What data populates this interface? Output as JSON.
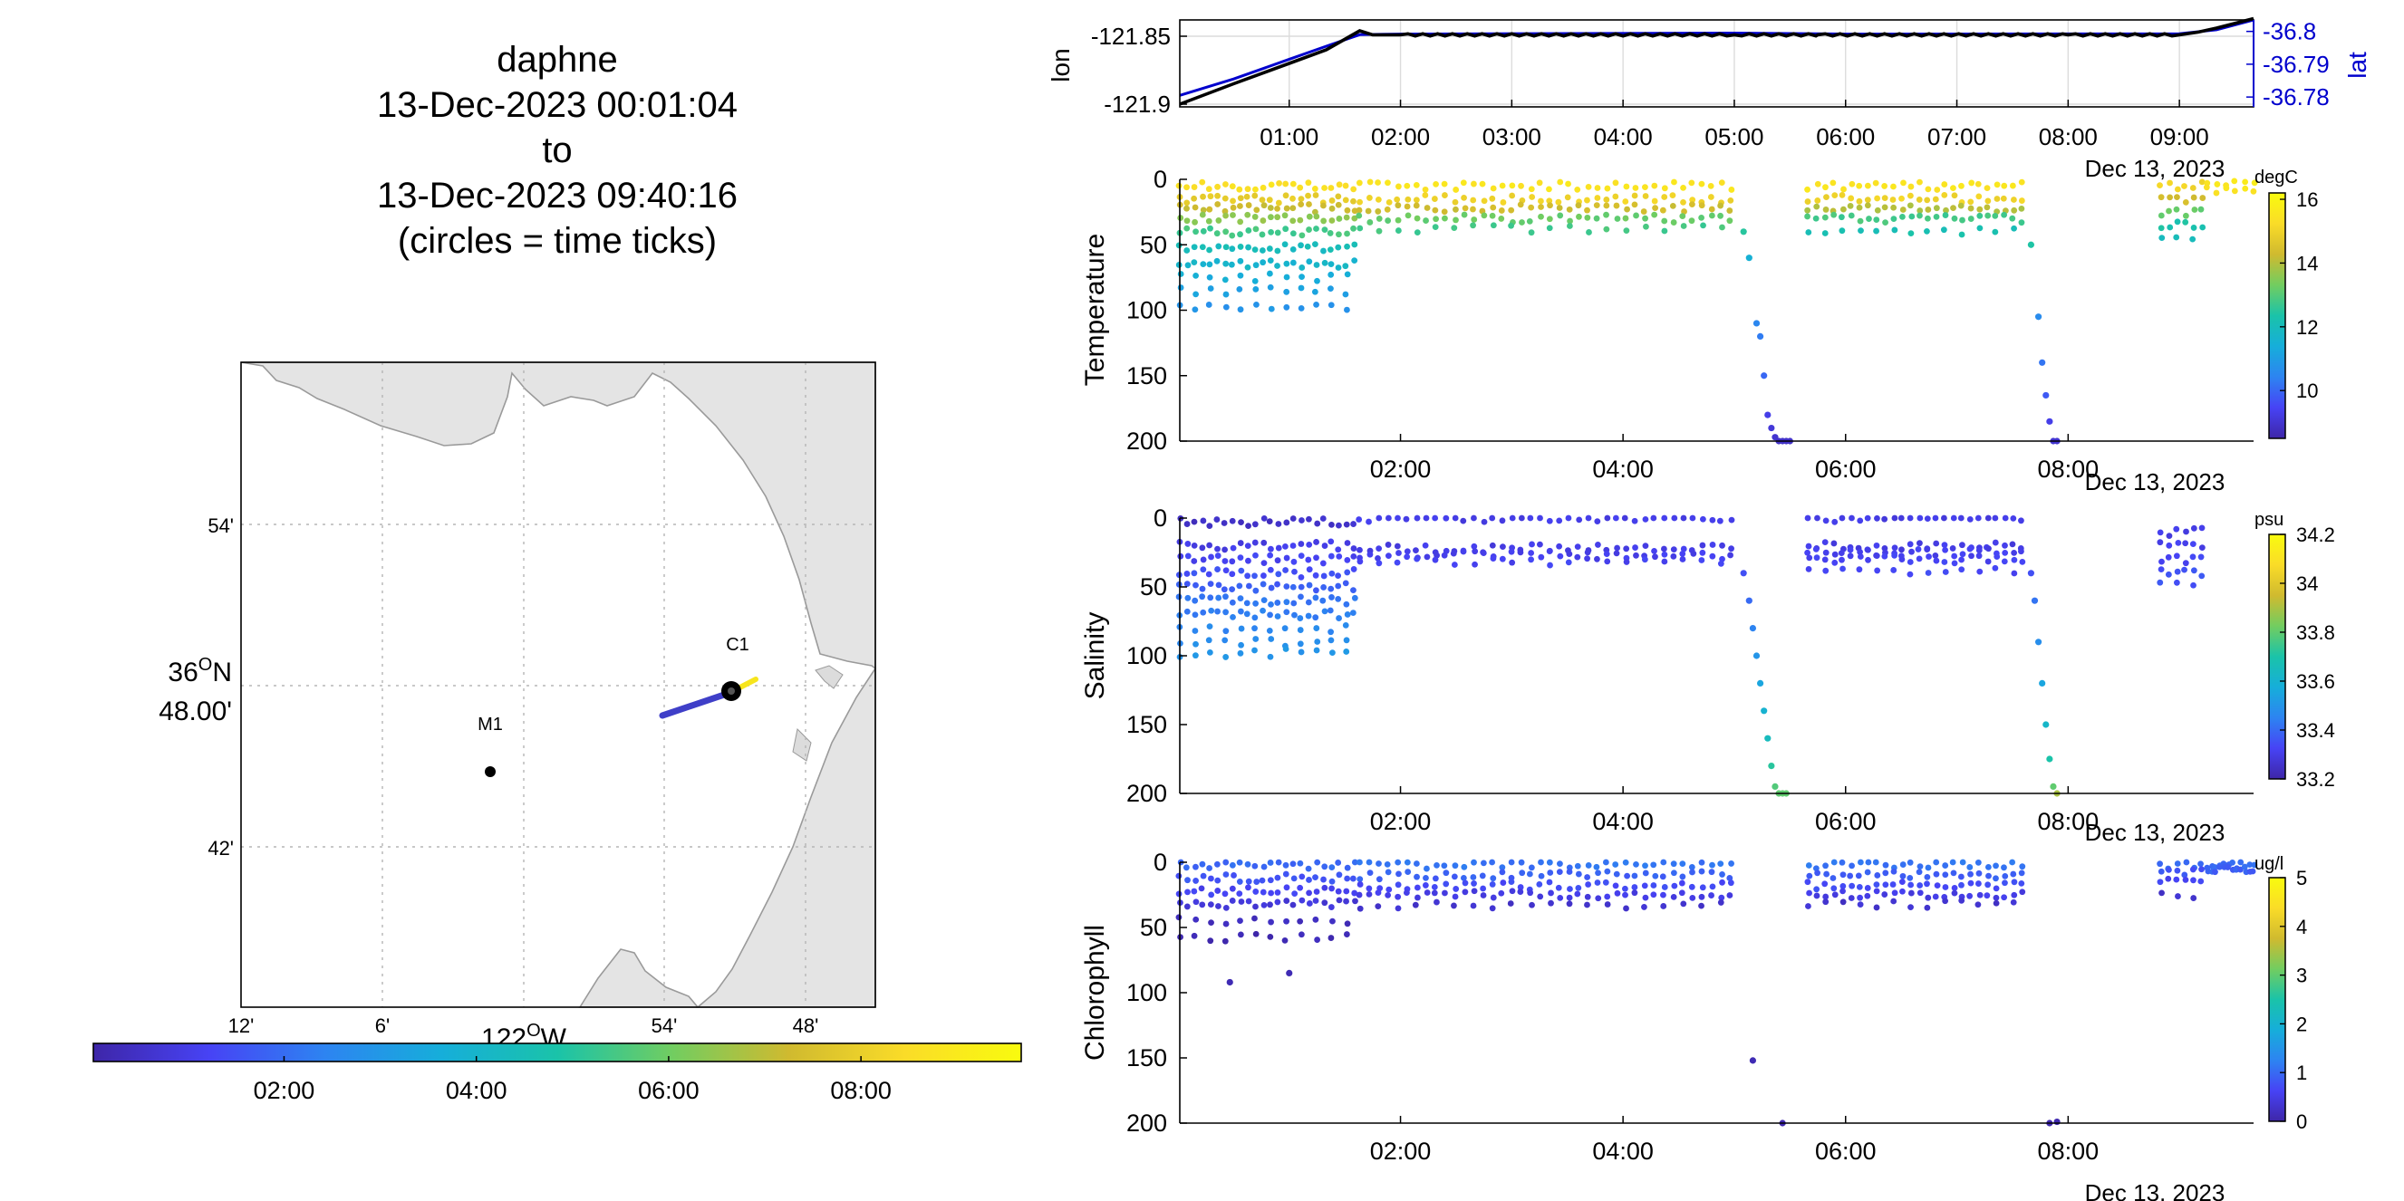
{
  "title": {
    "vehicle": "daphne",
    "start": "13-Dec-2023 00:01:04",
    "to": "to",
    "end": "13-Dec-2023 09:40:16",
    "note": "(circles = time ticks)"
  },
  "map": {
    "lat_ticks": [
      "54'",
      "42'"
    ],
    "lat_center_deg": "36",
    "lat_center_hem": "N",
    "lat_center_min": "48.00'",
    "lon_ticks": [
      "12'",
      "6'",
      "54'",
      "48'"
    ],
    "lon_center_deg": "122",
    "lon_center_hem": "W",
    "stations": [
      {
        "name": "M1",
        "lon": -122.03,
        "lat": 36.75
      },
      {
        "name": "C1",
        "lon": -121.865,
        "lat": 36.8
      }
    ],
    "track": {
      "start_lon": -121.9,
      "start_lat": 36.78,
      "end_lon": -121.85,
      "end_lat": 36.805
    },
    "time_colorbar_ticks": [
      "02:00",
      "04:00",
      "06:00",
      "08:00"
    ],
    "colors": {
      "land": "#e4e4e4",
      "coast": "#9a9a9a",
      "track": "#3f3fc8",
      "track_end": "#f7e51c"
    }
  },
  "colormap": [
    "#3e26a8",
    "#4743f5",
    "#2d84f1",
    "#16aeda",
    "#1ac3a9",
    "#72cd60",
    "#d0ba2f",
    "#fadc28",
    "#f9fb0e"
  ],
  "chart_data": [
    {
      "type": "line",
      "title": "",
      "xlabel": "",
      "ylabel": "lon",
      "ylabel_right": "lat",
      "x_tick_labels": [
        "01:00",
        "02:00",
        "03:00",
        "04:00",
        "05:00",
        "06:00",
        "07:00",
        "08:00",
        "09:00"
      ],
      "date_label": "Dec 13, 2023",
      "y_tick_labels": [
        "-121.85",
        "-121.9"
      ],
      "y_right_tick_labels": [
        "36.8",
        "36.79",
        "36.78"
      ],
      "series": [
        {
          "name": "lon",
          "color": "#000000",
          "x": [
            "00:01",
            "00:30",
            "01:00",
            "01:20",
            "01:38",
            "01:45",
            "02:00",
            "05:00",
            "05:45",
            "08:00",
            "09:00",
            "09:10",
            "09:20",
            "09:40"
          ],
          "y": [
            -121.9,
            -121.885,
            -121.87,
            -121.86,
            -121.846,
            -121.849,
            -121.849,
            -121.849,
            -121.849,
            -121.849,
            -121.849,
            -121.847,
            -121.844,
            -121.837
          ]
        },
        {
          "name": "lat",
          "color": "#0000cd",
          "x": [
            "00:01",
            "00:30",
            "01:00",
            "01:20",
            "01:38",
            "02:00",
            "05:00",
            "06:00",
            "09:00",
            "09:20",
            "09:40"
          ],
          "y": [
            36.7805,
            36.7855,
            36.7915,
            36.7955,
            36.799,
            36.7992,
            36.7995,
            36.7992,
            36.7993,
            36.8005,
            36.8035
          ]
        }
      ]
    },
    {
      "type": "scatter",
      "title": "",
      "xlabel": "",
      "ylabel": "Temperature",
      "colorbar_label": "degC",
      "colorbar_ticks": [
        "16",
        "14",
        "12",
        "10"
      ],
      "clim": [
        8.5,
        16.2
      ],
      "ylim": [
        0,
        200
      ],
      "y_tick_labels": [
        "0",
        "50",
        "100",
        "150",
        "200"
      ],
      "x_tick_labels": [
        "02:00",
        "04:00",
        "06:00",
        "08:00"
      ],
      "date_label": "Dec 13, 2023",
      "x_range": [
        "00:01",
        "09:40"
      ],
      "profiles": [
        {
          "t_start": "00:01",
          "t_end": "01:35",
          "depths": [
            5,
            15,
            22,
            30,
            40,
            52,
            65,
            75,
            85,
            98
          ],
          "values": [
            15.4,
            14.8,
            14.2,
            13.6,
            12.8,
            12.0,
            11.7,
            11.4,
            11.1,
            10.8
          ],
          "n": 24
        },
        {
          "t_start": "01:38",
          "t_end": "04:58",
          "depths": [
            5,
            15,
            22,
            30,
            38
          ],
          "values": [
            15.5,
            15.0,
            14.3,
            13.2,
            12.8
          ],
          "n": 40
        },
        {
          "t_start": "05:40",
          "t_end": "07:35",
          "depths": [
            5,
            15,
            22,
            30,
            40
          ],
          "values": [
            15.5,
            15.0,
            14.0,
            12.8,
            12.2
          ],
          "n": 26
        },
        {
          "t_start": "08:50",
          "t_end": "09:12",
          "depths": [
            5,
            15,
            25,
            35,
            45
          ],
          "values": [
            15.0,
            14.4,
            13.2,
            12.3,
            11.9
          ],
          "n": 6
        },
        {
          "t_start": "09:15",
          "t_end": "09:40",
          "depths": [
            2,
            8
          ],
          "values": [
            15.6,
            15.5
          ],
          "n": 6
        }
      ],
      "dives": [
        {
          "x": [
            "05:05",
            "05:08",
            "05:12",
            "05:14",
            "05:16",
            "05:18",
            "05:20",
            "05:22",
            "05:24",
            "05:26",
            "05:28",
            "05:30"
          ],
          "y": [
            40,
            60,
            110,
            120,
            150,
            180,
            190,
            197,
            200,
            200,
            200,
            200
          ],
          "v": [
            12.5,
            11.5,
            10.5,
            10.3,
            10.0,
            9.3,
            9.1,
            9.0,
            8.9,
            8.9,
            8.9,
            8.9
          ]
        },
        {
          "x": [
            "07:40",
            "07:44",
            "07:46",
            "07:48",
            "07:50",
            "07:52",
            "07:54"
          ],
          "y": [
            50,
            105,
            140,
            165,
            185,
            200,
            200
          ],
          "v": [
            12.4,
            10.6,
            10.2,
            9.8,
            9.3,
            9.0,
            9.0
          ]
        }
      ]
    },
    {
      "type": "scatter",
      "title": "",
      "xlabel": "",
      "ylabel": "Salinity",
      "colorbar_label": "psu",
      "colorbar_ticks": [
        "34.2",
        "34",
        "33.8",
        "33.6",
        "33.4",
        "33.2"
      ],
      "clim": [
        33.2,
        34.2
      ],
      "ylim": [
        0,
        200
      ],
      "y_tick_labels": [
        "0",
        "50",
        "100",
        "150",
        "200"
      ],
      "x_tick_labels": [
        "02:00",
        "04:00",
        "06:00",
        "08:00"
      ],
      "date_label": "Dec 13, 2023",
      "x_range": [
        "00:01",
        "09:40"
      ],
      "profiles": [
        {
          "t_start": "00:01",
          "t_end": "01:35",
          "depths": [
            3,
            20,
            30,
            40,
            50,
            60,
            70,
            80,
            90,
            98
          ],
          "values": [
            33.25,
            33.3,
            33.32,
            33.35,
            33.38,
            33.42,
            33.44,
            33.46,
            33.48,
            33.5
          ],
          "n": 24
        },
        {
          "t_start": "01:38",
          "t_end": "04:58",
          "depths": [
            0,
            22,
            27,
            32
          ],
          "values": [
            33.3,
            33.3,
            33.31,
            33.32
          ],
          "n": 40
        },
        {
          "t_start": "05:40",
          "t_end": "07:35",
          "depths": [
            0,
            20,
            25,
            30,
            38
          ],
          "values": [
            33.3,
            33.3,
            33.31,
            33.32,
            33.33
          ],
          "n": 26
        },
        {
          "t_start": "08:50",
          "t_end": "09:12",
          "depths": [
            10,
            20,
            30,
            40,
            48
          ],
          "values": [
            33.3,
            33.31,
            33.33,
            33.35,
            33.36
          ],
          "n": 6
        }
      ],
      "dives": [
        {
          "x": [
            "05:05",
            "05:08",
            "05:10",
            "05:12",
            "05:14",
            "05:16",
            "05:18",
            "05:20",
            "05:22",
            "05:24",
            "05:26",
            "05:28"
          ],
          "y": [
            40,
            60,
            80,
            100,
            120,
            140,
            160,
            180,
            195,
            200,
            200,
            200
          ],
          "v": [
            33.35,
            33.4,
            33.45,
            33.5,
            33.55,
            33.6,
            33.65,
            33.72,
            33.78,
            33.8,
            33.8,
            33.8
          ]
        },
        {
          "x": [
            "07:40",
            "07:42",
            "07:44",
            "07:46",
            "07:48",
            "07:50",
            "07:52",
            "07:54"
          ],
          "y": [
            40,
            60,
            90,
            120,
            150,
            175,
            195,
            200
          ],
          "v": [
            33.35,
            33.42,
            33.48,
            33.55,
            33.62,
            33.7,
            33.8,
            33.9
          ]
        }
      ]
    },
    {
      "type": "scatter",
      "title": "",
      "xlabel": "",
      "ylabel": "Chlorophyll",
      "colorbar_label": "ug/l",
      "colorbar_ticks": [
        "5",
        "4",
        "3",
        "2",
        "1",
        "0"
      ],
      "clim": [
        0,
        5
      ],
      "ylim": [
        0,
        200
      ],
      "y_tick_labels": [
        "0",
        "50",
        "100",
        "150",
        "200"
      ],
      "x_tick_labels": [
        "02:00",
        "04:00",
        "06:00",
        "08:00"
      ],
      "date_label": "Dec 13, 2023",
      "x_range": [
        "00:01",
        "09:40"
      ],
      "profiles": [
        {
          "t_start": "00:01",
          "t_end": "01:35",
          "depths": [
            2,
            12,
            22,
            32,
            45,
            58
          ],
          "values": [
            1.0,
            0.8,
            0.6,
            0.4,
            0.2,
            0.1
          ],
          "n": 24
        },
        {
          "t_start": "01:38",
          "t_end": "04:58",
          "depths": [
            2,
            10,
            18,
            25,
            33
          ],
          "values": [
            1.1,
            0.9,
            0.7,
            0.5,
            0.3
          ],
          "n": 40
        },
        {
          "t_start": "05:40",
          "t_end": "07:35",
          "depths": [
            2,
            10,
            18,
            25,
            32
          ],
          "values": [
            1.1,
            0.9,
            0.7,
            0.5,
            0.3
          ],
          "n": 26
        },
        {
          "t_start": "08:50",
          "t_end": "09:12",
          "depths": [
            2,
            8,
            15,
            25
          ],
          "values": [
            1.0,
            0.8,
            0.6,
            0.3
          ],
          "n": 6
        },
        {
          "t_start": "09:15",
          "t_end": "09:40",
          "depths": [
            2,
            5
          ],
          "values": [
            1.0,
            0.9
          ],
          "n": 12
        }
      ],
      "dives": [
        {
          "x": [
            "00:28",
            "01:00",
            "05:10",
            "05:26",
            "07:50",
            "07:54"
          ],
          "y": [
            92,
            85,
            152,
            200,
            200,
            199
          ],
          "v": [
            0.1,
            0.1,
            0.1,
            0.05,
            0.05,
            0.05
          ]
        }
      ]
    }
  ]
}
